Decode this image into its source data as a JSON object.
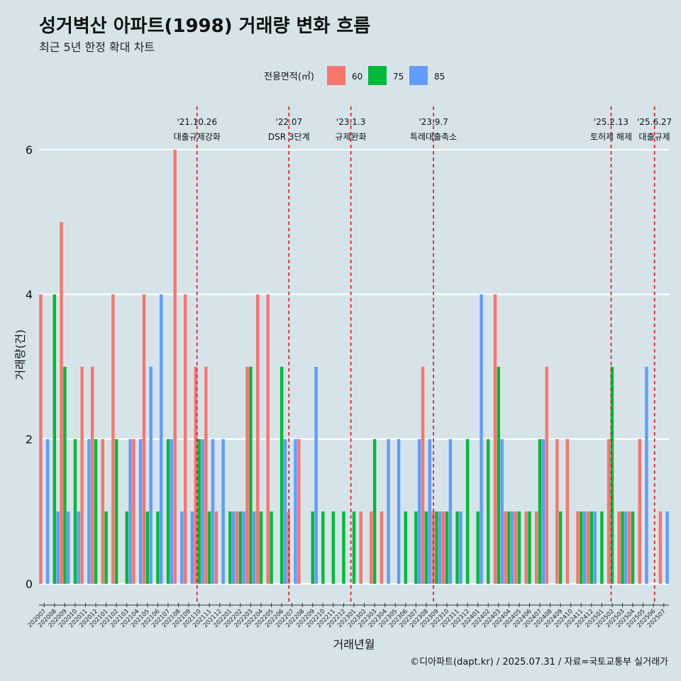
{
  "title": "성거벽산 아파트(1998) 거래량 변화 흐름",
  "subtitle": "최근 5년 한정 확대 차트",
  "caption": "©디아파트(dapt.kr) / 2025.07.31 / 자료=국토교통부 실거래가",
  "colors": {
    "background": "#d6e4ea",
    "s60": "#f8766d",
    "s75": "#00ba38",
    "s85": "#619cff",
    "event_line": "#e8101a",
    "grid": "#ffffff"
  },
  "chart_data": {
    "type": "bar",
    "xlabel": "거래년월",
    "ylabel": "거래량(건)",
    "ylim": [
      0,
      6
    ],
    "yticks": [
      0,
      2,
      4,
      6
    ],
    "grid": true,
    "legend": {
      "title": "전용면적(㎡)",
      "position": "top"
    },
    "categories": [
      "202007",
      "202008",
      "202009",
      "202010",
      "202011",
      "202012",
      "202101",
      "202102",
      "202103",
      "202104",
      "202105",
      "202106",
      "202107",
      "202108",
      "202109",
      "202110",
      "202111",
      "202112",
      "202201",
      "202202",
      "202203",
      "202204",
      "202205",
      "202206",
      "202207",
      "202208",
      "202209",
      "202210",
      "202211",
      "202212",
      "202301",
      "202302",
      "202303",
      "202304",
      "202305",
      "202306",
      "202307",
      "202308",
      "202309",
      "202310",
      "202311",
      "202312",
      "202401",
      "202402",
      "202403",
      "202404",
      "202405",
      "202406",
      "202407",
      "202408",
      "202409",
      "202410",
      "202411",
      "202412",
      "202501",
      "202502",
      "202503",
      "202504",
      "202505",
      "202506",
      "202507"
    ],
    "series": [
      {
        "name": "60",
        "values": [
          4,
          0,
          5,
          0,
          3,
          3,
          2,
          4,
          0,
          2,
          4,
          0,
          0,
          6,
          4,
          3,
          3,
          1,
          0,
          1,
          3,
          4,
          4,
          0,
          1,
          2,
          0,
          0,
          0,
          0,
          0,
          1,
          1,
          1,
          0,
          0,
          0,
          3,
          1,
          1,
          0,
          0,
          0,
          0,
          4,
          1,
          1,
          1,
          1,
          3,
          2,
          2,
          1,
          1,
          0,
          2,
          1,
          1,
          2,
          0,
          1
        ]
      },
      {
        "name": "75",
        "values": [
          0,
          4,
          3,
          2,
          0,
          2,
          1,
          2,
          1,
          0,
          1,
          1,
          2,
          0,
          0,
          2,
          1,
          0,
          1,
          1,
          3,
          1,
          1,
          3,
          0,
          0,
          1,
          1,
          1,
          1,
          1,
          0,
          2,
          0,
          0,
          1,
          1,
          1,
          1,
          1,
          1,
          2,
          1,
          2,
          3,
          1,
          1,
          1,
          2,
          0,
          1,
          0,
          1,
          1,
          1,
          3,
          1,
          1,
          0,
          0,
          0
        ]
      },
      {
        "name": "85",
        "values": [
          2,
          1,
          1,
          1,
          2,
          0,
          0,
          0,
          2,
          2,
          3,
          4,
          2,
          1,
          1,
          2,
          2,
          2,
          1,
          1,
          1,
          0,
          0,
          2,
          2,
          0,
          3,
          0,
          0,
          0,
          0,
          0,
          0,
          2,
          2,
          0,
          2,
          2,
          1,
          2,
          1,
          0,
          4,
          0,
          2,
          1,
          0,
          0,
          2,
          0,
          0,
          0,
          1,
          1,
          0,
          0,
          1,
          0,
          3,
          0,
          1
        ]
      }
    ],
    "events": [
      {
        "index": 15.3,
        "date": "'21.10.26",
        "label": "대출규제강화"
      },
      {
        "index": 24.2,
        "date": "'22.07",
        "label": "DSR 3단계"
      },
      {
        "index": 30.2,
        "date": "'23.1.3",
        "label": "규제완화"
      },
      {
        "index": 38.2,
        "date": "'23.9.7",
        "label": "특례대출축소"
      },
      {
        "index": 55.4,
        "date": "'25.2.13",
        "label": "토허제 해제"
      },
      {
        "index": 59.6,
        "date": "'25.6.27",
        "label": "대출규제"
      }
    ]
  }
}
